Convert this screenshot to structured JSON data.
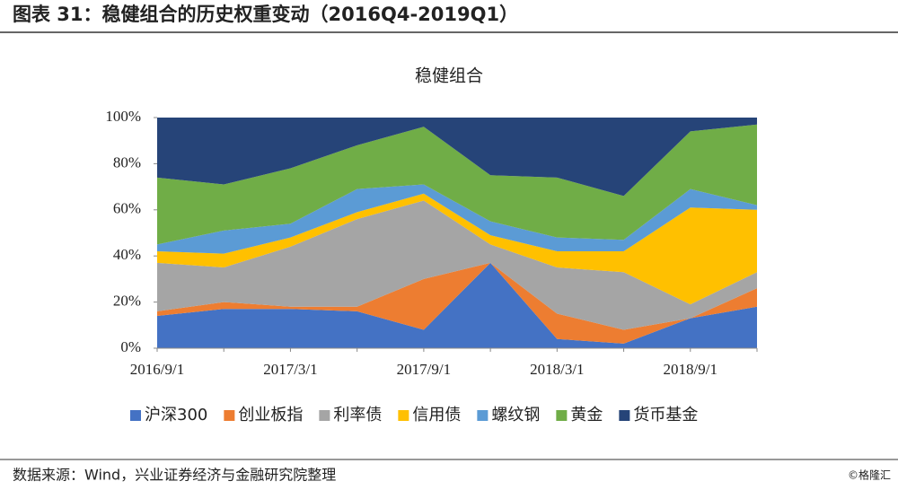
{
  "header": {
    "title": "图表 31：稳健组合的历史权重变动（2016Q4-2019Q1）"
  },
  "footer": {
    "source": "数据来源：Wind，兴业证券经济与金融研究院整理",
    "watermark": "©格隆汇"
  },
  "chart_data": {
    "type": "stacked-area",
    "title": "稳健组合",
    "categories": [
      "2016/9/1",
      null,
      "2017/3/1",
      null,
      "2017/9/1",
      null,
      "2018/3/1",
      null,
      "2018/9/1",
      null
    ],
    "series": [
      {
        "name": "沪深300",
        "color": "#4472c4",
        "values": [
          14,
          17,
          17,
          16,
          8,
          37,
          4,
          2,
          13,
          18
        ]
      },
      {
        "name": "创业板指",
        "color": "#ed7d31",
        "values": [
          2,
          3,
          1,
          2,
          22,
          0,
          11,
          6,
          0,
          8
        ]
      },
      {
        "name": "利率债",
        "color": "#a5a5a5",
        "values": [
          21,
          15,
          26,
          38,
          34,
          8,
          20,
          25,
          6,
          7
        ]
      },
      {
        "name": "信用债",
        "color": "#ffc000",
        "values": [
          5,
          6,
          4,
          3,
          3,
          4,
          7,
          9,
          42,
          27
        ]
      },
      {
        "name": "螺纹钢",
        "color": "#5b9bd5",
        "values": [
          3,
          10,
          6,
          10,
          4,
          6,
          6,
          5,
          8,
          2
        ]
      },
      {
        "name": "黄金",
        "color": "#70ad47",
        "values": [
          29,
          20,
          24,
          19,
          25,
          20,
          26,
          19,
          25,
          35
        ]
      },
      {
        "name": "货币基金",
        "color": "#264478",
        "values": [
          26,
          29,
          22,
          12,
          4,
          25,
          26,
          34,
          6,
          3
        ]
      }
    ],
    "ylim": [
      0,
      100
    ],
    "yticks": [
      {
        "value": 0,
        "label": "0%"
      },
      {
        "value": 20,
        "label": "20%"
      },
      {
        "value": 40,
        "label": "40%"
      },
      {
        "value": 60,
        "label": "60%"
      },
      {
        "value": 80,
        "label": "80%"
      },
      {
        "value": 100,
        "label": "100%"
      }
    ],
    "legend": "bottom"
  }
}
